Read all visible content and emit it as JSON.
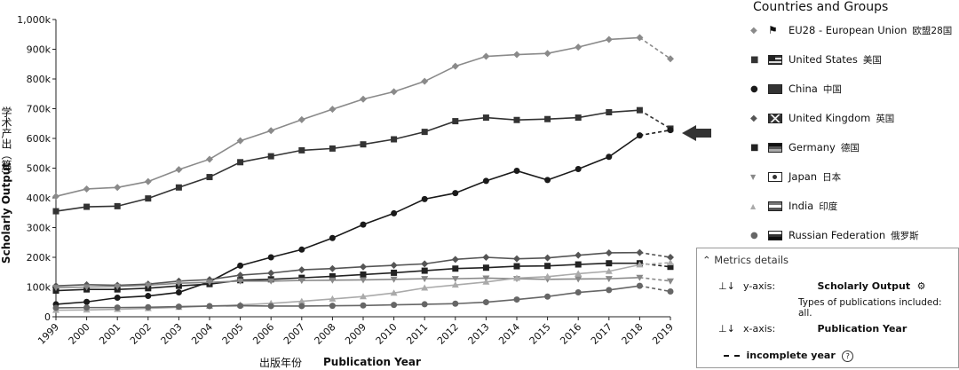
{
  "chart_data": {
    "type": "line",
    "title": "",
    "ylabel": "Scholarly Output",
    "ylabel_cn": "学术产出（篇）",
    "xlabel": "Publication Year",
    "xlabel_cn": "出版年份",
    "ylim": [
      0,
      1000000
    ],
    "yticks": [
      "0",
      "100k",
      "200k",
      "300k",
      "400k",
      "500k",
      "600k",
      "700k",
      "800k",
      "900k",
      "1,000k"
    ],
    "x": [
      "1999",
      "2000",
      "2001",
      "2002",
      "2003",
      "2004",
      "2005",
      "2006",
      "2007",
      "2008",
      "2009",
      "2010",
      "2011",
      "2012",
      "2013",
      "2014",
      "2015",
      "2016",
      "2017",
      "2018",
      "2019"
    ],
    "incomplete_from_year": "2018",
    "grid": false,
    "legend_placement": "right",
    "series": [
      {
        "name": "EU28 - European Union",
        "name_cn": "欧盟28国",
        "marker": "diamond",
        "flag": "eu",
        "color": "#8a8a8a",
        "values": [
          405000,
          430000,
          435000,
          455000,
          495000,
          530000,
          592000,
          626000,
          663000,
          698000,
          732000,
          757000,
          792000,
          843000,
          876000,
          882000,
          886000,
          907000,
          933000,
          939000,
          868000
        ]
      },
      {
        "name": "United States",
        "name_cn": "美国",
        "marker": "square",
        "flag": "us",
        "color": "#333333",
        "values": [
          355000,
          370000,
          372000,
          398000,
          435000,
          470000,
          520000,
          540000,
          560000,
          566000,
          580000,
          597000,
          622000,
          658000,
          670000,
          662000,
          665000,
          670000,
          688000,
          695000,
          633000
        ]
      },
      {
        "name": "China",
        "name_cn": "中国",
        "marker": "circle",
        "flag": "cn",
        "color": "#1a1a1a",
        "values": [
          42000,
          50000,
          64000,
          70000,
          82000,
          118000,
          172000,
          200000,
          226000,
          265000,
          310000,
          348000,
          396000,
          416000,
          457000,
          491000,
          460000,
          497000,
          538000,
          610000,
          628000
        ]
      },
      {
        "name": "United Kingdom",
        "name_cn": "英国",
        "marker": "diamond",
        "flag": "uk",
        "color": "#555555",
        "values": [
          104000,
          108000,
          106000,
          110000,
          120000,
          125000,
          140000,
          147000,
          158000,
          162000,
          168000,
          173000,
          178000,
          193000,
          200000,
          195000,
          198000,
          207000,
          215000,
          216000,
          200000
        ]
      },
      {
        "name": "Germany",
        "name_cn": "德国",
        "marker": "square",
        "flag": "de",
        "color": "#222222",
        "values": [
          88000,
          92000,
          92000,
          96000,
          104000,
          110000,
          123000,
          126000,
          131000,
          136000,
          142000,
          148000,
          155000,
          162000,
          165000,
          170000,
          171000,
          176000,
          180000,
          180000,
          168000
        ]
      },
      {
        "name": "Japan",
        "name_cn": "日本",
        "marker": "triangle-down",
        "flag": "jp",
        "color": "#888888",
        "values": [
          98000,
          100000,
          102000,
          106000,
          113000,
          116000,
          120000,
          120000,
          122000,
          123000,
          124000,
          126000,
          128000,
          128000,
          130000,
          128000,
          126000,
          127000,
          128000,
          132000,
          120000
        ]
      },
      {
        "name": "India",
        "name_cn": "印度",
        "marker": "triangle-up",
        "flag": "in",
        "color": "#aaaaaa",
        "values": [
          22000,
          23000,
          25000,
          28000,
          32000,
          36000,
          40000,
          45000,
          52000,
          60000,
          68000,
          80000,
          97000,
          107000,
          117000,
          130000,
          135000,
          145000,
          153000,
          175000,
          182000
        ]
      },
      {
        "name": "Russian Federation",
        "name_cn": "俄罗斯",
        "marker": "circle",
        "flag": "ru",
        "color": "#666666",
        "values": [
          30000,
          31000,
          31000,
          32000,
          34000,
          36000,
          37000,
          36000,
          36000,
          37000,
          38000,
          40000,
          42000,
          44000,
          49000,
          58000,
          68000,
          82000,
          90000,
          104000,
          85000
        ]
      }
    ]
  },
  "legend": {
    "title": "Countries and Groups"
  },
  "metrics": {
    "header": "Metrics details",
    "y_axis_key": "y-axis:",
    "y_axis_value": "Scholarly Output",
    "y_axis_note": "Types of publications included: all.",
    "x_axis_key": "x-axis:",
    "x_axis_value": "Publication Year",
    "incomplete_label": "incomplete year",
    "help_glyph": "?"
  },
  "icons": {
    "arrow": "left-arrow-icon",
    "collapse": "chevron-up-icon",
    "axis": "axis-icon"
  }
}
